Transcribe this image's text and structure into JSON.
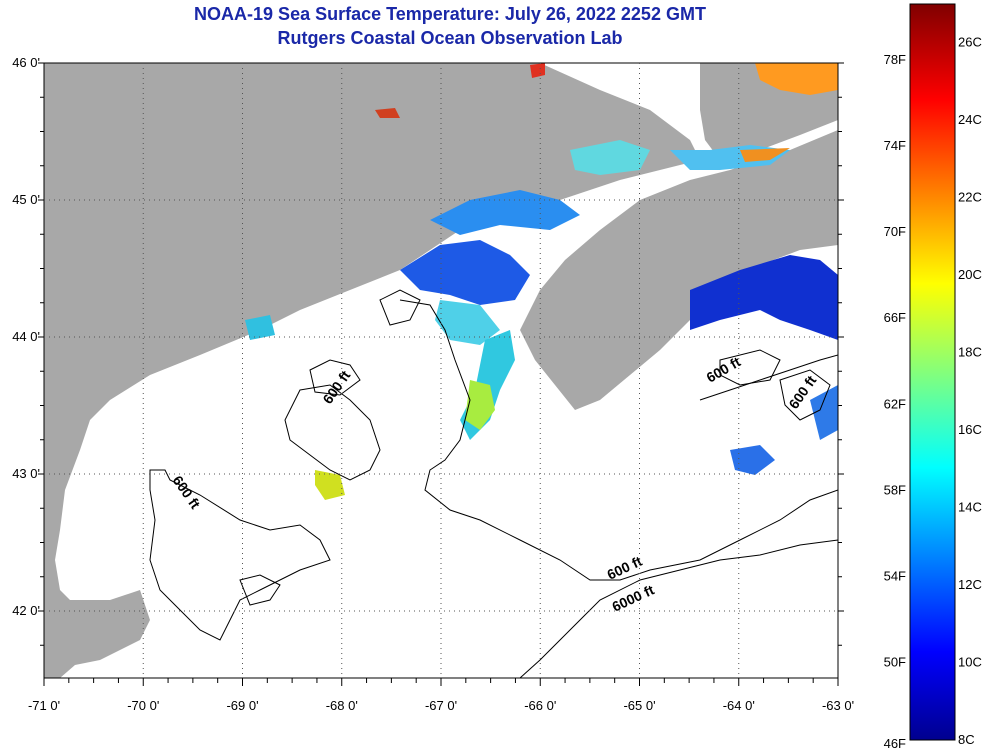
{
  "map": {
    "title": "NOAA-19 Sea Surface Temperature:  July 26, 2022 2252 GMT",
    "subtitle": "Rutgers Coastal Ocean Observation Lab",
    "lon_labels": [
      "-71 0'",
      "-70 0'",
      "-69 0'",
      "-68 0'",
      "-67 0'",
      "-66 0'",
      "-65 0'",
      "-64 0'",
      "-63 0'"
    ],
    "lat_labels": [
      "46 0'",
      "45 0'",
      "44 0'",
      "43 0'",
      "42 0'"
    ],
    "contour_labels": [
      "600 ft",
      "600 ft",
      "600 ft",
      "600 ft",
      "6000 ft",
      "600 ft"
    ],
    "colors": {
      "land": "#a8a8a8",
      "ocean": "#ffffff",
      "title": "#1a28a8"
    }
  },
  "colorbar": {
    "fahrenheit_labels": [
      "78F",
      "74F",
      "70F",
      "66F",
      "62F",
      "58F",
      "54F",
      "50F",
      "46F"
    ],
    "celsius_labels": [
      "26C",
      "24C",
      "22C",
      "20C",
      "18C",
      "16C",
      "14C",
      "12C",
      "10C",
      "8C"
    ],
    "range_c": [
      8,
      27
    ]
  }
}
